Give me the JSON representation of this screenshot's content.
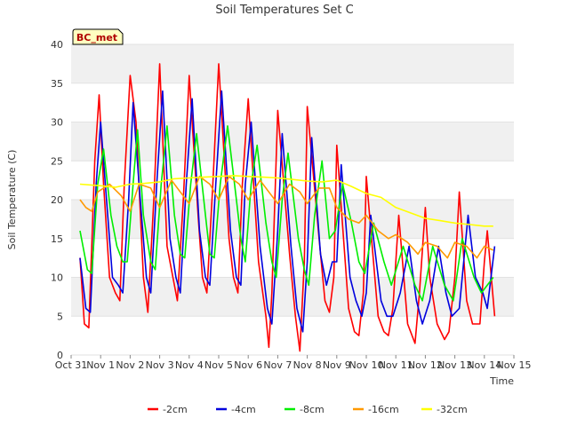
{
  "chart_data": {
    "type": "line",
    "title": "Soil Temperatures Set C",
    "xlabel": "Time",
    "ylabel": "Soil Temperature (C)",
    "badge": "BC_met",
    "ylim": [
      0,
      40
    ],
    "xlim": [
      0,
      15
    ],
    "yticks": [
      0,
      5,
      10,
      15,
      20,
      25,
      30,
      35,
      40
    ],
    "xticks": [
      {
        "x": 0,
        "label": "Oct 31"
      },
      {
        "x": 1,
        "label": "Nov 1"
      },
      {
        "x": 2,
        "label": "Nov 2"
      },
      {
        "x": 3,
        "label": "Nov 3"
      },
      {
        "x": 4,
        "label": "Nov 4"
      },
      {
        "x": 5,
        "label": "Nov 5"
      },
      {
        "x": 6,
        "label": "Nov 6"
      },
      {
        "x": 7,
        "label": "Nov 7"
      },
      {
        "x": 8,
        "label": "Nov 8"
      },
      {
        "x": 9,
        "label": "Nov 9"
      },
      {
        "x": 10,
        "label": "Nov 10"
      },
      {
        "x": 11,
        "label": "Nov 11"
      },
      {
        "x": 12,
        "label": "Nov 12"
      },
      {
        "x": 13,
        "label": "Nov 13"
      },
      {
        "x": 14,
        "label": "Nov 14"
      },
      {
        "x": 15,
        "label": "Nov 15"
      }
    ],
    "grid": "horizontal bands",
    "legend_position": "bottom",
    "series": [
      {
        "name": "-2cm",
        "color": "#ff0000",
        "x": [
          0.3,
          0.45,
          0.6,
          0.8,
          0.95,
          1.1,
          1.3,
          1.5,
          1.65,
          1.8,
          2.0,
          2.2,
          2.45,
          2.6,
          2.8,
          3.0,
          3.25,
          3.45,
          3.6,
          3.8,
          4.0,
          4.3,
          4.45,
          4.6,
          4.8,
          5.0,
          5.35,
          5.5,
          5.65,
          5.8,
          6.0,
          6.35,
          6.6,
          6.7,
          6.8,
          7.0,
          7.4,
          7.6,
          7.75,
          7.9,
          8.0,
          8.4,
          8.6,
          8.75,
          8.9,
          9.0,
          9.4,
          9.6,
          9.75,
          9.9,
          10.0,
          10.4,
          10.6,
          10.75,
          10.9,
          11.1,
          11.4,
          11.65,
          11.8,
          12.0,
          12.15,
          12.4,
          12.65,
          12.8,
          13.0,
          13.15,
          13.4,
          13.6,
          13.85,
          14.0,
          14.1,
          14.35
        ],
        "y": [
          12.5,
          4,
          3.5,
          25,
          33.5,
          22,
          10,
          8,
          7,
          22,
          36,
          30,
          10,
          5.5,
          20,
          37.5,
          14,
          10,
          7,
          20,
          36,
          18,
          10,
          8,
          22,
          37.5,
          15,
          10,
          8,
          22,
          33,
          12,
          5,
          1,
          8,
          31.5,
          13,
          5,
          0.5,
          12,
          32,
          15,
          7,
          5.5,
          10,
          27,
          6,
          3,
          2.5,
          8,
          23,
          5,
          3,
          2.5,
          6,
          18,
          4,
          1.5,
          8,
          19,
          10,
          4,
          2,
          3,
          10,
          21,
          7,
          4,
          4,
          12,
          16,
          5
        ]
      },
      {
        "name": "-4cm",
        "color": "#0000dd",
        "x": [
          0.3,
          0.5,
          0.65,
          0.85,
          1.0,
          1.2,
          1.4,
          1.6,
          1.75,
          1.95,
          2.1,
          2.3,
          2.55,
          2.7,
          2.9,
          3.1,
          3.35,
          3.55,
          3.7,
          3.9,
          4.1,
          4.35,
          4.55,
          4.7,
          4.9,
          5.1,
          5.4,
          5.6,
          5.75,
          5.9,
          6.1,
          6.4,
          6.65,
          6.8,
          7.0,
          7.15,
          7.45,
          7.65,
          7.85,
          8.0,
          8.15,
          8.45,
          8.65,
          8.85,
          9.0,
          9.15,
          9.45,
          9.65,
          9.85,
          10.0,
          10.15,
          10.5,
          10.7,
          10.9,
          11.15,
          11.45,
          11.7,
          11.9,
          12.15,
          12.45,
          12.7,
          12.9,
          13.15,
          13.45,
          13.7,
          13.95,
          14.1,
          14.35
        ],
        "y": [
          12.5,
          6,
          5.5,
          22,
          30,
          20,
          10,
          9,
          8,
          20,
          32.5,
          22,
          10,
          8,
          22,
          34,
          15,
          10,
          8,
          22,
          33,
          16,
          10,
          9,
          22,
          34,
          16,
          10,
          9,
          22,
          30,
          14,
          6,
          4,
          16,
          28.5,
          14,
          6,
          3,
          12,
          28,
          13,
          9,
          12,
          12,
          24.5,
          10,
          7,
          5,
          8,
          18,
          7,
          5,
          5,
          8,
          14,
          7,
          4,
          7,
          14,
          8,
          5,
          6,
          18,
          10,
          8,
          6,
          14
        ]
      },
      {
        "name": "-8cm",
        "color": "#00ee00",
        "x": [
          0.3,
          0.55,
          0.7,
          0.9,
          1.1,
          1.35,
          1.55,
          1.75,
          1.9,
          2.1,
          2.25,
          2.45,
          2.7,
          2.85,
          3.05,
          3.25,
          3.5,
          3.7,
          3.85,
          4.05,
          4.25,
          4.55,
          4.7,
          4.85,
          5.05,
          5.3,
          5.6,
          5.75,
          5.9,
          6.1,
          6.3,
          6.6,
          6.8,
          6.95,
          7.15,
          7.35,
          7.7,
          7.9,
          8.05,
          8.25,
          8.5,
          8.75,
          8.95,
          9.2,
          9.5,
          9.75,
          9.95,
          10.25,
          10.6,
          10.85,
          11.25,
          11.65,
          11.9,
          12.25,
          12.65,
          12.95,
          13.25,
          13.65,
          13.9,
          14.3
        ],
        "y": [
          16,
          11,
          10.5,
          22,
          26.5,
          18,
          14,
          12,
          12,
          22,
          29,
          18,
          12,
          11,
          22,
          29.5,
          18,
          13,
          12.5,
          22,
          28.5,
          18,
          13,
          12.5,
          22,
          29.5,
          20,
          15,
          12,
          22,
          27,
          17,
          12,
          10,
          20,
          26,
          15,
          11,
          9,
          18,
          25,
          15,
          16,
          22,
          17,
          12,
          10.5,
          17,
          12,
          9,
          14,
          9,
          7,
          14,
          9,
          7,
          15,
          10,
          8,
          10
        ]
      },
      {
        "name": "-16cm",
        "color": "#ff9900",
        "x": [
          0.3,
          0.5,
          0.7,
          0.9,
          1.3,
          1.7,
          2.0,
          2.3,
          2.7,
          3.0,
          3.4,
          3.7,
          4.0,
          4.35,
          4.7,
          5.0,
          5.35,
          5.7,
          6.0,
          6.4,
          6.7,
          7.0,
          7.4,
          7.75,
          8.0,
          8.4,
          8.75,
          9.0,
          9.4,
          9.75,
          10.0,
          10.4,
          10.75,
          11.0,
          11.4,
          11.75,
          12.0,
          12.4,
          12.75,
          13.0,
          13.4,
          13.75,
          14.0,
          14.3
        ],
        "y": [
          20,
          19,
          18.5,
          21,
          22,
          20.5,
          18.5,
          22,
          21.5,
          19,
          22.5,
          21,
          19.5,
          23,
          22,
          20,
          23,
          22,
          20,
          22.5,
          21,
          19.5,
          22,
          21,
          19.5,
          21.5,
          21.5,
          19,
          17.5,
          17,
          18,
          16,
          15,
          15.5,
          14.5,
          13,
          14.5,
          14,
          12.5,
          14.5,
          14,
          12.5,
          14,
          13.5
        ]
      },
      {
        "name": "-32cm",
        "color": "#ffff00",
        "x": [
          0.3,
          1.0,
          1.5,
          2.0,
          2.5,
          3.0,
          3.5,
          4.0,
          4.5,
          5.0,
          5.5,
          6.0,
          6.5,
          7.0,
          7.5,
          8.0,
          8.5,
          9.0,
          9.5,
          10.0,
          10.5,
          11.0,
          11.5,
          12.0,
          12.5,
          13.0,
          13.5,
          14.0,
          14.3
        ],
        "y": [
          22,
          21.8,
          21.6,
          22,
          22.1,
          22.3,
          22.7,
          22.8,
          22.9,
          23,
          23.1,
          23,
          22.9,
          22.8,
          22.6,
          22.4,
          22.3,
          22.5,
          21.7,
          20.8,
          20.3,
          19,
          18.3,
          17.6,
          17.3,
          17,
          16.8,
          16.6,
          16.6
        ]
      }
    ]
  }
}
